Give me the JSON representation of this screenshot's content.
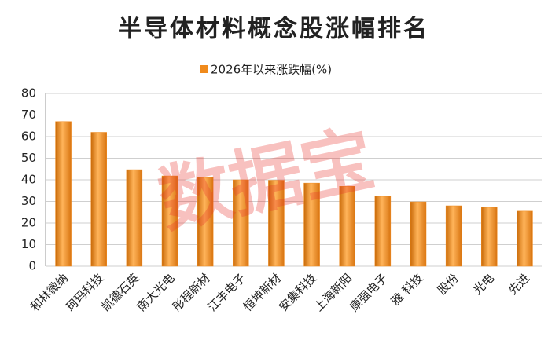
{
  "chart_data": {
    "type": "bar",
    "title": "半导体材料概念股涨幅排名",
    "watermark": "数据宝",
    "series": [
      {
        "name": "2026年以来涨跌幅(%)",
        "color": "#f08a1c",
        "values": [
          67,
          62,
          44.7,
          41.8,
          41.1,
          40,
          39.8,
          38.5,
          37,
          32.4,
          29.8,
          28,
          27.3,
          25.5
        ]
      }
    ],
    "categories": [
      "和林微纳",
      "珂玛科技",
      "凯德石英",
      "南大光电",
      "彤程新材",
      "江丰电子",
      "恒坤新材",
      "安集科技",
      "上海新阳",
      "康强电子",
      "雅 科技",
      "股份",
      "光电",
      "先进"
    ],
    "ylim": [
      0,
      80
    ],
    "yticks": [
      0,
      10,
      20,
      30,
      40,
      50,
      60,
      70,
      80
    ],
    "grid": true,
    "legend": "top"
  }
}
